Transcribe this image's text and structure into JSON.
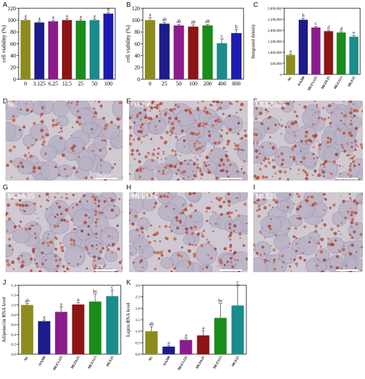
{
  "panels": {
    "A": "A",
    "B": "B",
    "C": "C",
    "D": "D",
    "E": "E",
    "F": "F",
    "G": "G",
    "H": "H",
    "I": "I",
    "J": "J",
    "K": "K"
  },
  "microscopy": [
    {
      "id": "D",
      "label": "NC",
      "scale": "",
      "density": 0.35,
      "seed": 11
    },
    {
      "id": "E",
      "label": "OA200",
      "scale": "",
      "density": 0.85,
      "seed": 23
    },
    {
      "id": "F",
      "label": "MLE3.125",
      "scale": "",
      "density": 0.7,
      "seed": 37
    },
    {
      "id": "G",
      "label": "MLE6.25",
      "scale": "",
      "density": 0.6,
      "seed": 41
    },
    {
      "id": "H",
      "label": "MLE12.5",
      "scale": "",
      "density": 0.55,
      "seed": 53
    },
    {
      "id": "I",
      "label": "MLE25",
      "scale": "",
      "density": 0.5,
      "seed": 67
    }
  ],
  "scale_labels": {
    "D": "100μm",
    "G": "100μm"
  },
  "chart_data": [
    {
      "id": "A",
      "type": "bar",
      "categories": [
        "0",
        "3.125",
        "6.25",
        "12.5",
        "25",
        "50",
        "100"
      ],
      "values": [
        100,
        96,
        98,
        100,
        99,
        100,
        111
      ],
      "errors": [
        2,
        2,
        2,
        2,
        2,
        2,
        2
      ],
      "letters": [
        "a",
        "a",
        "a",
        "a",
        "a",
        "a",
        "b"
      ],
      "colors": [
        "#8c8c1e",
        "#1c1c8c",
        "#8c1c8c",
        "#8c1414",
        "#1a8c1a",
        "#1a8c8c",
        "#1c1cb4"
      ],
      "ylabel": "cell viability (%)",
      "xlabel": "",
      "ylim": [
        0,
        120
      ],
      "yticks": [
        0,
        20,
        40,
        60,
        80,
        100,
        120
      ]
    },
    {
      "id": "B",
      "type": "bar",
      "categories": [
        "0",
        "25",
        "50",
        "100",
        "200",
        "400",
        "800"
      ],
      "values": [
        100,
        94,
        91,
        89,
        91,
        61,
        78
      ],
      "errors": [
        4,
        2,
        2,
        3,
        2,
        7,
        6
      ],
      "letters": [
        "a",
        "ab",
        "ab",
        "ab",
        "ab",
        "c",
        "b"
      ],
      "colors": [
        "#8c8c1e",
        "#1c1c8c",
        "#8c1c8c",
        "#8c1414",
        "#1a8c1a",
        "#1a8c8c",
        "#1c1cb4"
      ],
      "ylabel": "cell viability (%)",
      "xlabel": "",
      "ylim": [
        0,
        120
      ],
      "yticks": [
        0,
        20,
        40,
        60,
        80,
        100,
        120
      ]
    },
    {
      "id": "C",
      "type": "bar",
      "categories": [
        "NC",
        "OA200",
        "MLE3.125",
        "MLE6.25",
        "MLE12.5",
        "MLE25"
      ],
      "values": [
        880000,
        2480000,
        2130000,
        1960000,
        1900000,
        1710000
      ],
      "errors": [
        40000,
        60000,
        50000,
        40000,
        40000,
        50000
      ],
      "letters": [
        "a",
        "b",
        "c",
        "d",
        "d",
        "e"
      ],
      "colors": [
        "#8c8c1e",
        "#1c1c8c",
        "#8c1c8c",
        "#8c1414",
        "#1a8c1a",
        "#1a8c8c"
      ],
      "ylabel": "Integrated density",
      "xlabel": "",
      "ylim": [
        0,
        3000000
      ],
      "yticks": [
        0,
        500000,
        1000000,
        1500000,
        2000000,
        2500000,
        3000000
      ],
      "yticklabels": [
        "0",
        "500,000",
        "1,000,000",
        "1,500,000",
        "2,000,000",
        "2,500,000",
        "3,000,000"
      ]
    },
    {
      "id": "J",
      "type": "bar",
      "categories": [
        "NC",
        "OA200",
        "MLE3.125",
        "MLE6.25",
        "MLE12.5",
        "MLE25"
      ],
      "values": [
        1.0,
        0.67,
        0.86,
        1.01,
        1.07,
        1.18
      ],
      "errors": [
        0.03,
        0.02,
        0.1,
        0.04,
        0.15,
        0.12
      ],
      "letters": [
        "ab",
        "a",
        "a",
        "a",
        "bc",
        "c"
      ],
      "colors": [
        "#8c8c1e",
        "#1c1c8c",
        "#8c1c8c",
        "#8c1414",
        "#1a8c1a",
        "#1a8c8c"
      ],
      "ylabel": "Adiponectin RNA level",
      "xlabel": "",
      "ylim": [
        0,
        1.4
      ],
      "yticks": [
        0,
        0.2,
        0.4,
        0.6,
        0.8,
        1.0,
        1.2,
        1.4
      ],
      "yticklabels": [
        "0.0",
        "0.2",
        "0.4",
        "0.6",
        "0.8",
        "1.0",
        "1.2",
        "1.4"
      ]
    },
    {
      "id": "K",
      "type": "bar",
      "categories": [
        "NC",
        "OA200",
        "MLE3.125",
        "MLE6.25",
        "MLE12.5",
        "MLE25"
      ],
      "values": [
        1.0,
        0.33,
        0.62,
        0.82,
        1.58,
        2.12
      ],
      "errors": [
        0.2,
        0.05,
        0.08,
        0.2,
        0.62,
        0.9
      ],
      "letters": [
        "ab",
        "a",
        "a",
        "a",
        "bc",
        "c"
      ],
      "colors": [
        "#8c8c1e",
        "#1c1c8c",
        "#8c1c8c",
        "#8c1414",
        "#1a8c1a",
        "#1a8c8c"
      ],
      "ylabel": "Leptin RNA level",
      "xlabel": "",
      "ylim": [
        0,
        3.0
      ],
      "yticks": [
        0,
        0.5,
        1.0,
        1.5,
        2.0,
        2.5,
        3.0
      ],
      "yticklabels": [
        "0.0",
        "0.5",
        "1.0",
        "1.5",
        "2.0",
        "2.5",
        "3.0"
      ]
    }
  ]
}
